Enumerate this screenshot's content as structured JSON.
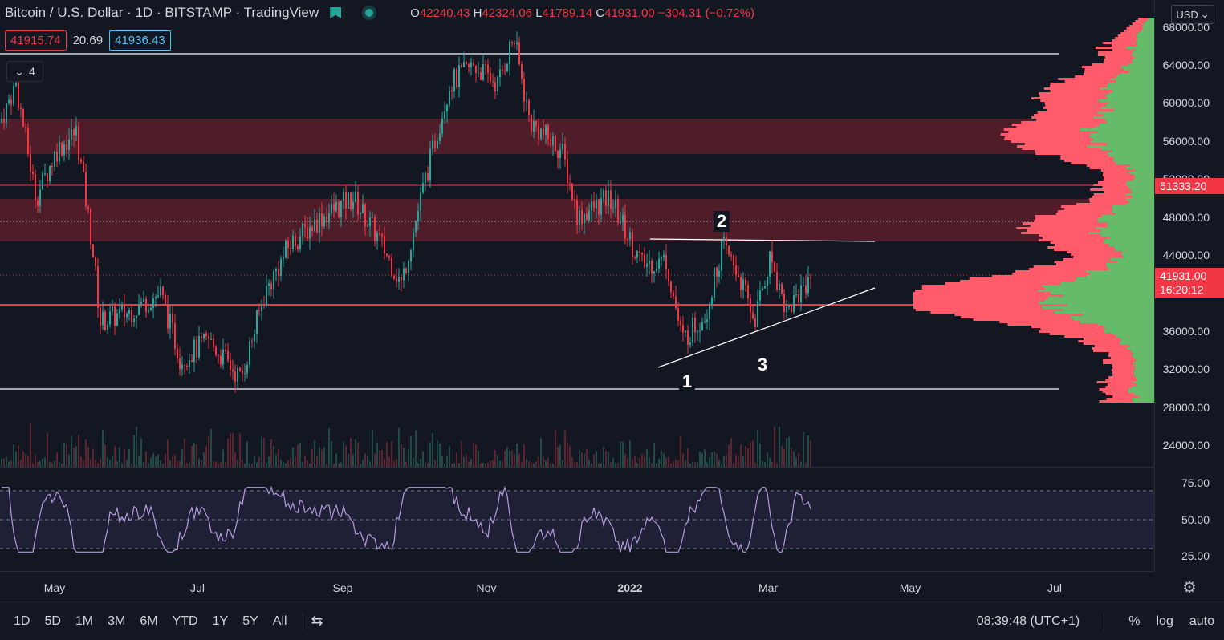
{
  "legend": {
    "symbol": "Bitcoin / U.S. Dollar",
    "interval": "1D",
    "exchange": "BITSTAMP",
    "source": "TradingView",
    "o_label": "O",
    "o": "42240.43",
    "h_label": "H",
    "h": "42324.06",
    "l_label": "L",
    "l": "41789.14",
    "c_label": "C",
    "c": "41931.00",
    "change": "−304.31 (−0.72%)"
  },
  "price_boxes": {
    "sell": "41915.74",
    "spread": "20.69",
    "buy": "41936.43"
  },
  "collapse_count": "4",
  "currency": "USD",
  "price_scale": {
    "labels": [
      "68000.00",
      "64000.00",
      "60000.00",
      "56000.00",
      "52000.00",
      "48000.00",
      "44000.00",
      "36000.00",
      "32000.00",
      "28000.00",
      "24000.00"
    ],
    "tag_level": "51333.20",
    "last_price": "41931.00",
    "countdown": "16:20:12"
  },
  "rsi_scale": [
    "75.00",
    "50.00",
    "25.00"
  ],
  "time_axis": [
    "May",
    "Jul",
    "Sep",
    "Nov",
    "2022",
    "Jan",
    "Mar",
    "May",
    "Jul"
  ],
  "annotations": [
    "1",
    "2",
    "3"
  ],
  "timeframes": [
    "1D",
    "5D",
    "1M",
    "3M",
    "6M",
    "YTD",
    "1Y",
    "5Y",
    "All"
  ],
  "clock": "08:39:48 (UTC+1)",
  "toolbar_right": {
    "percent": "%",
    "log": "log",
    "auto": "auto"
  },
  "colors": {
    "up": "#26a69a",
    "down": "#f23645",
    "bg": "#131722",
    "zone": "#5a1f2a",
    "vp_up": "#66bb6a",
    "vp_down": "#ff5b6b"
  },
  "icons": [
    "bookmark-icon",
    "live-indicator-icon",
    "chevron-down-icon",
    "compare-range-icon",
    "settings-gear-icon"
  ]
}
